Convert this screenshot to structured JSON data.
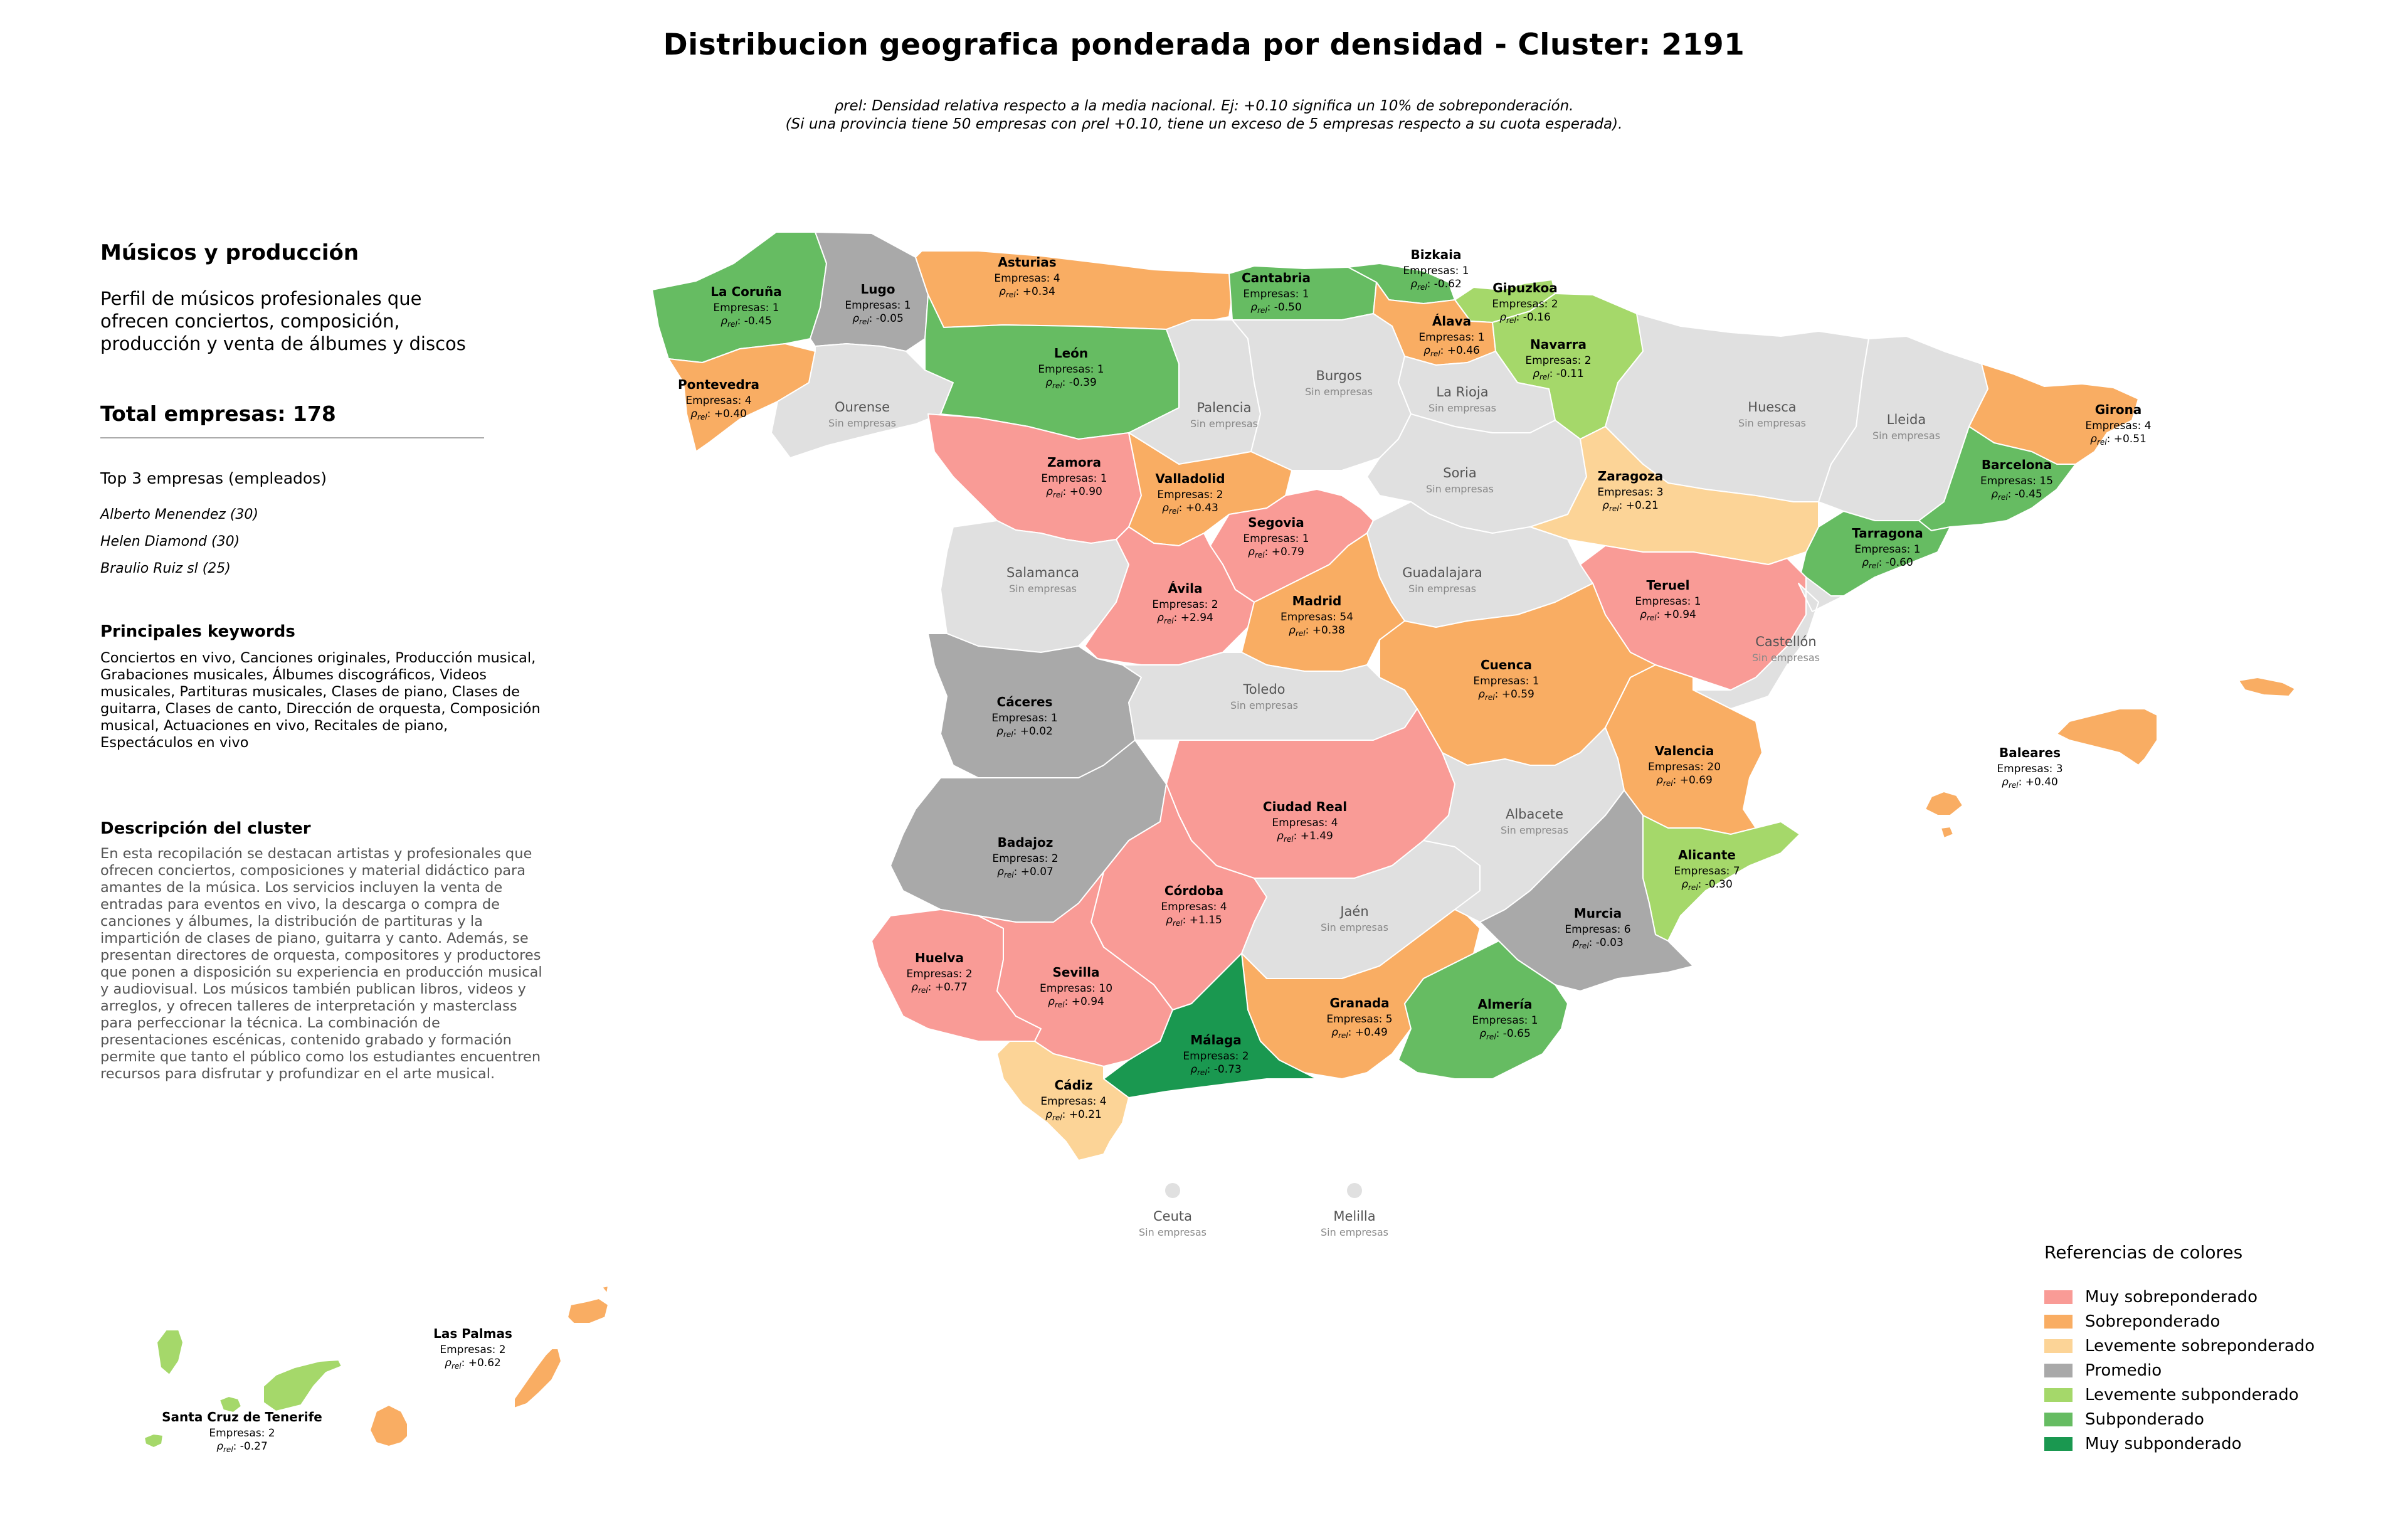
{
  "title": "Distribucion geografica ponderada por densidad - Cluster: 2191",
  "subtitle": {
    "line1": "ρrel: Densidad relativa respecto a la media nacional. Ej: +0.10 significa un 10% de sobreponderación.",
    "line2": "(Si una provincia tiene 50 empresas con ρrel +0.10, tiene un exceso de 5 empresas respecto a su cuota esperada)."
  },
  "sidebar": {
    "heading": "Músicos y producción",
    "profile": "Perfil de músicos profesionales que ofrecen conciertos, composición, producción y venta de álbumes y discos",
    "total": "Total empresas: 178",
    "top3_title": "Top 3 empresas (empleados)",
    "top3": [
      "Alberto Menendez (30)",
      "Helen Diamond (30)",
      "Braulio Ruiz sl (25)"
    ],
    "keywords_title": "Principales keywords",
    "keywords": "Conciertos en vivo, Canciones originales, Producción musical, Grabaciones musicales, Álbumes discográficos, Videos musicales, Partituras musicales, Clases de piano, Clases de guitarra, Clases de canto, Dirección de orquesta, Composición musical, Actuaciones en vivo, Recitales de piano, Espectáculos en vivo",
    "description_title": "Descripción del cluster",
    "description": "En esta recopilación se destacan artistas y profesionales que ofrecen conciertos, composiciones y material didáctico para amantes de la música. Los servicios incluyen la venta de entradas para eventos en vivo, la descarga o compra de canciones y álbumes, la distribución de partituras y la impartición de clases de piano, guitarra y canto. Además, se presentan directores de orquesta, compositores y productores que ponen a disposición su experiencia en producción musical y audiovisual. Los músicos también publican libros, videos y arreglos, y ofrecen talleres de interpretación y masterclass para perfeccionar la técnica. La combinación de presentaciones escénicas, contenido grabado y formación permite que tanto el público como los estudiantes encuentren recursos para disfrutar y profundizar en el arte musical."
  },
  "labels": {
    "companies_prefix": "Empresas: ",
    "rho": "ρ",
    "rho_sub": "rel",
    "no_companies": "Sin empresas"
  },
  "legend": {
    "title": "Referencias de colores",
    "items": [
      {
        "key": "muy_sobre",
        "label": "Muy sobreponderado",
        "color": "#f99b96"
      },
      {
        "key": "sobre",
        "label": "Sobreponderado",
        "color": "#f9ad63"
      },
      {
        "key": "lev_sobre",
        "label": "Levemente sobreponderado",
        "color": "#fcd497"
      },
      {
        "key": "promedio",
        "label": "Promedio",
        "color": "#a9a9a9"
      },
      {
        "key": "lev_sub",
        "label": "Levemente subponderado",
        "color": "#a5d86a"
      },
      {
        "key": "sub",
        "label": "Subponderado",
        "color": "#66bc62"
      },
      {
        "key": "muy_sub",
        "label": "Muy subponderado",
        "color": "#1a9850"
      }
    ],
    "none_color": "#e0e0e0"
  },
  "provinces": [
    {
      "name": "La Coruña",
      "companies": 1,
      "rho": "-0.45",
      "cat": "sub"
    },
    {
      "name": "Lugo",
      "companies": 1,
      "rho": "-0.05",
      "cat": "promedio"
    },
    {
      "name": "Asturias",
      "companies": 4,
      "rho": "+0.34",
      "cat": "sobre"
    },
    {
      "name": "Cantabria",
      "companies": 1,
      "rho": "-0.50",
      "cat": "sub"
    },
    {
      "name": "Bizkaia",
      "companies": 1,
      "rho": "-0.62",
      "cat": "sub"
    },
    {
      "name": "Gipuzkoa",
      "companies": 2,
      "rho": "-0.16",
      "cat": "lev_sub"
    },
    {
      "name": "Álava",
      "companies": 1,
      "rho": "+0.46",
      "cat": "sobre"
    },
    {
      "name": "Navarra",
      "companies": 2,
      "rho": "-0.11",
      "cat": "lev_sub"
    },
    {
      "name": "Pontevedra",
      "companies": 4,
      "rho": "+0.40",
      "cat": "sobre"
    },
    {
      "name": "Ourense",
      "companies": null,
      "rho": null,
      "cat": "none"
    },
    {
      "name": "León",
      "companies": 1,
      "rho": "-0.39",
      "cat": "sub"
    },
    {
      "name": "Palencia",
      "companies": null,
      "rho": null,
      "cat": "none"
    },
    {
      "name": "Burgos",
      "companies": null,
      "rho": null,
      "cat": "none"
    },
    {
      "name": "La Rioja",
      "companies": null,
      "rho": null,
      "cat": "none"
    },
    {
      "name": "Huesca",
      "companies": null,
      "rho": null,
      "cat": "none"
    },
    {
      "name": "Lleida",
      "companies": null,
      "rho": null,
      "cat": "none"
    },
    {
      "name": "Girona",
      "companies": 4,
      "rho": "+0.51",
      "cat": "sobre"
    },
    {
      "name": "Barcelona",
      "companies": 15,
      "rho": "-0.45",
      "cat": "sub"
    },
    {
      "name": "Tarragona",
      "companies": 1,
      "rho": "-0.60",
      "cat": "sub"
    },
    {
      "name": "Zamora",
      "companies": 1,
      "rho": "+0.90",
      "cat": "muy_sobre"
    },
    {
      "name": "Valladolid",
      "companies": 2,
      "rho": "+0.43",
      "cat": "sobre"
    },
    {
      "name": "Soria",
      "companies": null,
      "rho": null,
      "cat": "none"
    },
    {
      "name": "Zaragoza",
      "companies": 3,
      "rho": "+0.21",
      "cat": "lev_sobre"
    },
    {
      "name": "Segovia",
      "companies": 1,
      "rho": "+0.79",
      "cat": "muy_sobre"
    },
    {
      "name": "Salamanca",
      "companies": null,
      "rho": null,
      "cat": "none"
    },
    {
      "name": "Guadalajara",
      "companies": null,
      "rho": null,
      "cat": "none"
    },
    {
      "name": "Ávila",
      "companies": 2,
      "rho": "+2.94",
      "cat": "muy_sobre"
    },
    {
      "name": "Madrid",
      "companies": 54,
      "rho": "+0.38",
      "cat": "sobre"
    },
    {
      "name": "Teruel",
      "companies": 1,
      "rho": "+0.94",
      "cat": "muy_sobre"
    },
    {
      "name": "Castellón",
      "companies": null,
      "rho": null,
      "cat": "none"
    },
    {
      "name": "Cáceres",
      "companies": 1,
      "rho": "+0.02",
      "cat": "promedio"
    },
    {
      "name": "Toledo",
      "companies": null,
      "rho": null,
      "cat": "none"
    },
    {
      "name": "Cuenca",
      "companies": 1,
      "rho": "+0.59",
      "cat": "sobre"
    },
    {
      "name": "Valencia",
      "companies": 20,
      "rho": "+0.69",
      "cat": "sobre"
    },
    {
      "name": "Baleares",
      "companies": 3,
      "rho": "+0.40",
      "cat": "sobre"
    },
    {
      "name": "Ciudad Real",
      "companies": 4,
      "rho": "+1.49",
      "cat": "muy_sobre"
    },
    {
      "name": "Badajoz",
      "companies": 2,
      "rho": "+0.07",
      "cat": "promedio"
    },
    {
      "name": "Albacete",
      "companies": null,
      "rho": null,
      "cat": "none"
    },
    {
      "name": "Alicante",
      "companies": 7,
      "rho": "-0.30",
      "cat": "lev_sub"
    },
    {
      "name": "Córdoba",
      "companies": 4,
      "rho": "+1.15",
      "cat": "muy_sobre"
    },
    {
      "name": "Jaén",
      "companies": null,
      "rho": null,
      "cat": "none"
    },
    {
      "name": "Murcia",
      "companies": 6,
      "rho": "-0.03",
      "cat": "promedio"
    },
    {
      "name": "Huelva",
      "companies": 2,
      "rho": "+0.77",
      "cat": "muy_sobre"
    },
    {
      "name": "Sevilla",
      "companies": 10,
      "rho": "+0.94",
      "cat": "muy_sobre"
    },
    {
      "name": "Granada",
      "companies": 5,
      "rho": "+0.49",
      "cat": "sobre"
    },
    {
      "name": "Almería",
      "companies": 1,
      "rho": "-0.65",
      "cat": "sub"
    },
    {
      "name": "Málaga",
      "companies": 2,
      "rho": "-0.73",
      "cat": "muy_sub"
    },
    {
      "name": "Cádiz",
      "companies": 4,
      "rho": "+0.21",
      "cat": "lev_sobre"
    },
    {
      "name": "Ceuta",
      "companies": null,
      "rho": null,
      "cat": "none"
    },
    {
      "name": "Melilla",
      "companies": null,
      "rho": null,
      "cat": "none"
    },
    {
      "name": "Las Palmas",
      "companies": 2,
      "rho": "+0.62",
      "cat": "sobre"
    },
    {
      "name": "Santa Cruz de Tenerife",
      "companies": 2,
      "rho": "-0.27",
      "cat": "lev_sub"
    }
  ]
}
